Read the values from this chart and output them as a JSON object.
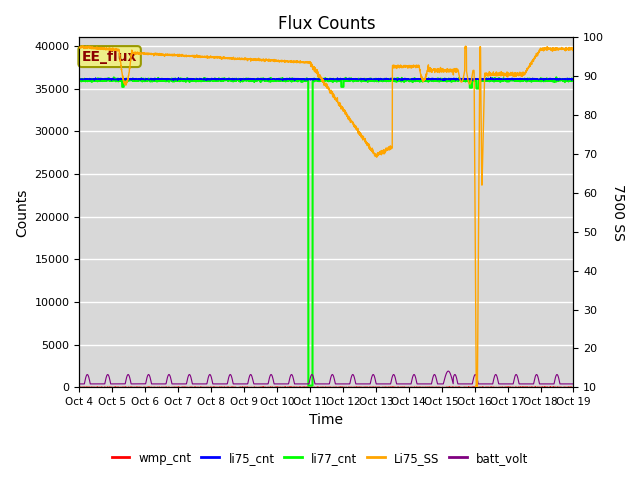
{
  "title": "Flux Counts",
  "xlabel": "Time",
  "ylabel_left": "Counts",
  "ylabel_right": "7500 SS",
  "ylim_left": [
    0,
    41000
  ],
  "ylim_right": [
    10,
    100
  ],
  "yticks_left": [
    0,
    5000,
    10000,
    15000,
    20000,
    25000,
    30000,
    35000,
    40000
  ],
  "yticks_right": [
    10,
    20,
    30,
    40,
    50,
    60,
    70,
    80,
    90,
    100
  ],
  "bg_color": "#d8d8d8",
  "annotation_text": "EE_flux",
  "annotation_bg": "#eeee88",
  "legend_entries": [
    "wmp_cnt",
    "li75_cnt",
    "li77_cnt",
    "Li75_SS",
    "batt_volt"
  ],
  "legend_colors": [
    "red",
    "blue",
    "lime",
    "orange",
    "purple"
  ],
  "x_tick_labels": [
    "Oct 4",
    "Oct 5",
    "Oct 6",
    "Oct 7",
    "Oct 8",
    "Oct 9",
    "Oct 10",
    "Oct 11",
    "Oct 12",
    "Oct 13",
    "Oct 14",
    "Oct 15",
    "Oct 16",
    "Oct 17",
    "Oct 18",
    "Oct 19"
  ],
  "n_days": 15
}
